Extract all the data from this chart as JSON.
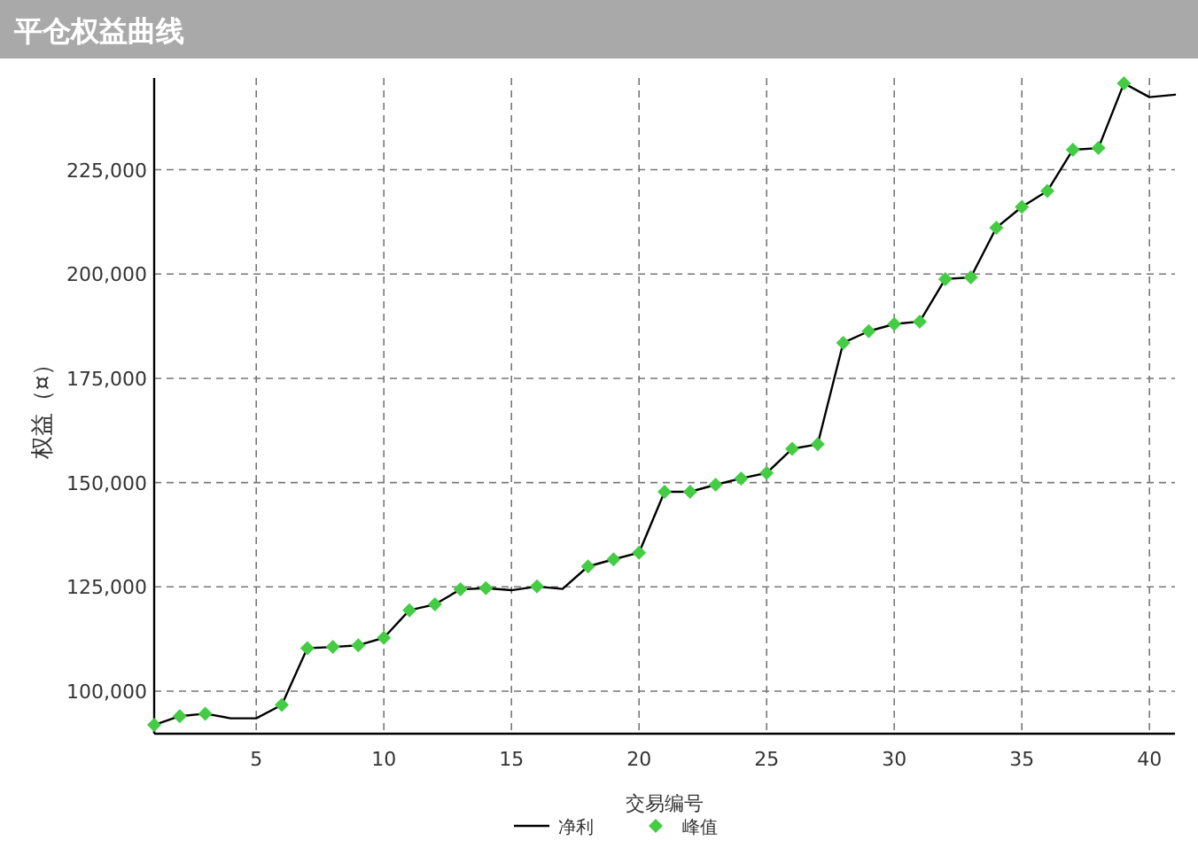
{
  "chart_data": {
    "type": "line",
    "title": "平仓权益曲线",
    "xlabel": "交易编号",
    "ylabel": "权益（¤）",
    "x": [
      1,
      2,
      3,
      4,
      5,
      6,
      7,
      8,
      9,
      10,
      11,
      12,
      13,
      14,
      15,
      16,
      17,
      18,
      19,
      20,
      21,
      22,
      23,
      24,
      25,
      26,
      27,
      28,
      29,
      30,
      31,
      32,
      33,
      34,
      35,
      36,
      37,
      38,
      39,
      40,
      41
    ],
    "series": [
      {
        "name": "净利",
        "color": "#000000",
        "marker": "none",
        "values": [
          91900,
          94000,
          94600,
          93500,
          93500,
          96700,
          110300,
          110600,
          111000,
          112800,
          119400,
          120800,
          124400,
          124700,
          124200,
          125100,
          124500,
          129900,
          131600,
          133200,
          147800,
          147800,
          149500,
          151000,
          152300,
          158100,
          159200,
          183500,
          186300,
          188000,
          188600,
          198800,
          199200,
          211100,
          216100,
          219900,
          229800,
          230200,
          245700,
          242400,
          243000
        ]
      },
      {
        "name": "峰值",
        "type": "scatter",
        "color": "#44cc44",
        "marker": "diamond",
        "values": [
          91900,
          94000,
          94600,
          null,
          null,
          96700,
          110300,
          110600,
          111000,
          112800,
          119400,
          120800,
          124400,
          124700,
          null,
          125100,
          null,
          129900,
          131600,
          133200,
          147800,
          147800,
          149500,
          151000,
          152300,
          158100,
          159200,
          183500,
          186300,
          188000,
          188600,
          198800,
          199200,
          211100,
          216100,
          219900,
          229800,
          230200,
          245700,
          null,
          null
        ]
      }
    ],
    "xlim": [
      1,
      41
    ],
    "xticks": [
      5,
      10,
      15,
      20,
      25,
      30,
      35,
      40
    ],
    "ylim": [
      89800,
      247000
    ],
    "yticks": [
      {
        "value": 100000,
        "label": "100,000"
      },
      {
        "value": 125000,
        "label": "125,000"
      },
      {
        "value": 150000,
        "label": "150,000"
      },
      {
        "value": 175000,
        "label": "175,000"
      },
      {
        "value": 200000,
        "label": "200,000"
      },
      {
        "value": 225000,
        "label": "225,000"
      }
    ],
    "grid": true,
    "legend": "bottom"
  }
}
